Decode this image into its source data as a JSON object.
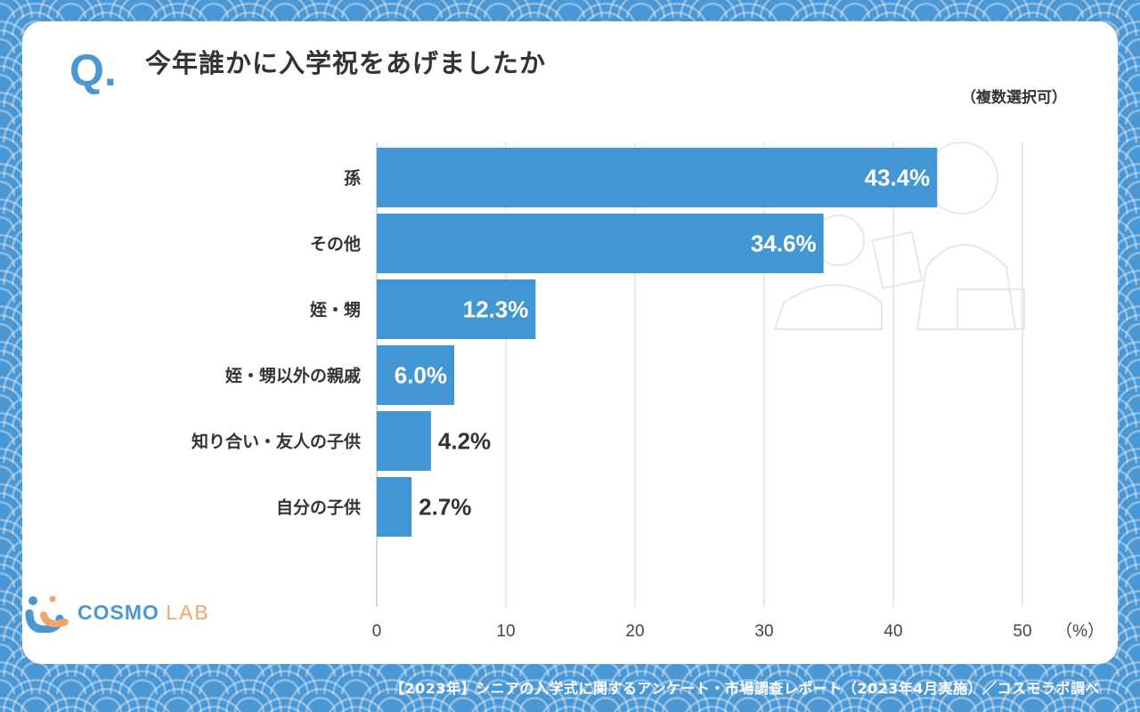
{
  "header": {
    "q_mark": "Q.",
    "title": "今年誰かに入学祝をあげましたか",
    "note": "（複数選択可）"
  },
  "chart_data": {
    "type": "bar",
    "orientation": "horizontal",
    "categories": [
      "孫",
      "その他",
      "姪・甥",
      "姪・甥以外の親戚",
      "知り合い・友人の子供",
      "自分の子供"
    ],
    "values": [
      43.4,
      34.6,
      12.3,
      6.0,
      4.2,
      2.7
    ],
    "value_labels": [
      "43.4%",
      "34.6%",
      "12.3%",
      "6.0%",
      "4.2%",
      "2.7%"
    ],
    "x_ticks": [
      "0",
      "10",
      "20",
      "30",
      "40",
      "50"
    ],
    "xlim": [
      0,
      50
    ],
    "x_unit": "（%）",
    "grid": true,
    "bar_color": "#4196d3"
  },
  "logo": {
    "cosmo": "COSMO",
    "lab": "LAB"
  },
  "footer": {
    "source": "【2023年】シニアの入学式に関するアンケート・市場調査レポート（2023年4月実施）／コスモラボ調べ"
  }
}
